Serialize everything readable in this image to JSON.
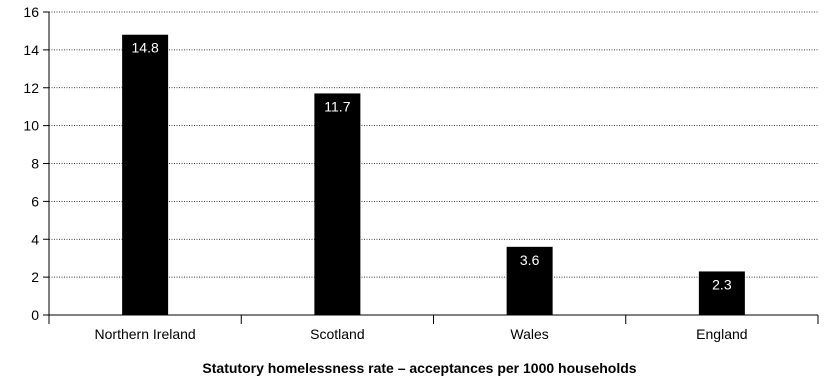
{
  "chart_data": {
    "type": "bar",
    "categories": [
      "Northern Ireland",
      "Scotland",
      "Wales",
      "England"
    ],
    "values": [
      14.8,
      11.7,
      3.6,
      2.3
    ],
    "data_labels": [
      "14.8",
      "11.7",
      "3.6",
      "2.3"
    ],
    "title": "",
    "xlabel": "Statutory homelessness rate – acceptances per 1000 households",
    "ylabel": "",
    "ylim": [
      0,
      16
    ],
    "yticks": [
      0,
      2,
      4,
      6,
      8,
      10,
      12,
      14,
      16
    ],
    "grid": true,
    "grid_style": "dotted",
    "legend": "none",
    "bar_color": "#000000",
    "label_color": "#ffffff"
  }
}
